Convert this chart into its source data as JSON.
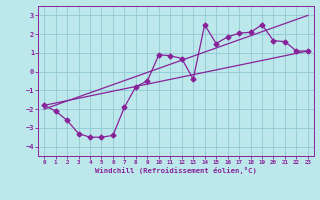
{
  "xlabel": "Windchill (Refroidissement éolien,°C)",
  "xlim": [
    -0.5,
    23.5
  ],
  "ylim": [
    -4.5,
    3.5
  ],
  "xticks": [
    0,
    1,
    2,
    3,
    4,
    5,
    6,
    7,
    8,
    9,
    10,
    11,
    12,
    13,
    14,
    15,
    16,
    17,
    18,
    19,
    20,
    21,
    22,
    23
  ],
  "yticks": [
    -4,
    -3,
    -2,
    -1,
    0,
    1,
    2,
    3
  ],
  "background_color": "#bce8ec",
  "grid_color": "#90c8d4",
  "line_color": "#882299",
  "curve_x": [
    0,
    1,
    2,
    3,
    4,
    5,
    6,
    7,
    8,
    9,
    10,
    11,
    12,
    13,
    14,
    15,
    16,
    17,
    18,
    19,
    20,
    21,
    22,
    23
  ],
  "curve_y": [
    -1.8,
    -2.1,
    -2.6,
    -3.3,
    -3.5,
    -3.5,
    -3.4,
    -1.9,
    -0.8,
    -0.5,
    0.9,
    0.85,
    0.7,
    -0.4,
    2.5,
    1.5,
    1.85,
    2.05,
    2.1,
    2.5,
    1.65,
    1.6,
    1.1,
    1.1
  ],
  "line1_x": [
    0,
    23
  ],
  "line1_y": [
    -2.0,
    3.0
  ],
  "line2_x": [
    0,
    23
  ],
  "line2_y": [
    -1.8,
    1.1
  ]
}
